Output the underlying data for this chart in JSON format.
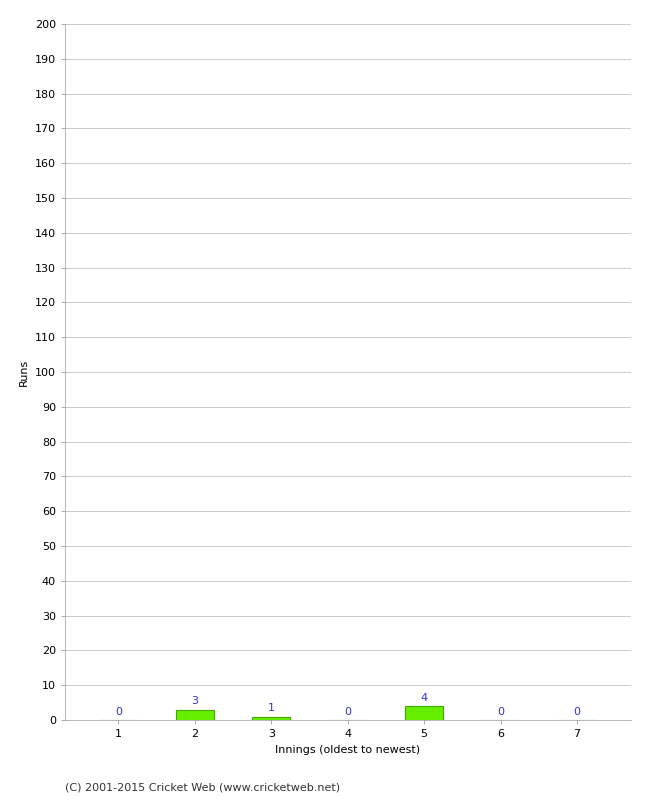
{
  "xlabel": "Innings (oldest to newest)",
  "ylabel": "Runs",
  "categories": [
    1,
    2,
    3,
    4,
    5,
    6,
    7
  ],
  "values": [
    0,
    3,
    1,
    0,
    4,
    0,
    0
  ],
  "bar_color": "#66ee00",
  "bar_edge_color": "#44aa00",
  "label_color": "#3333cc",
  "ylim": [
    0,
    200
  ],
  "yticks": [
    0,
    10,
    20,
    30,
    40,
    50,
    60,
    70,
    80,
    90,
    100,
    110,
    120,
    130,
    140,
    150,
    160,
    170,
    180,
    190,
    200
  ],
  "background_color": "#ffffff",
  "grid_color": "#cccccc",
  "footer": "(C) 2001-2015 Cricket Web (www.cricketweb.net)",
  "label_fontsize": 8,
  "axis_fontsize": 8,
  "ylabel_fontsize": 8,
  "xlabel_fontsize": 8,
  "footer_fontsize": 8
}
